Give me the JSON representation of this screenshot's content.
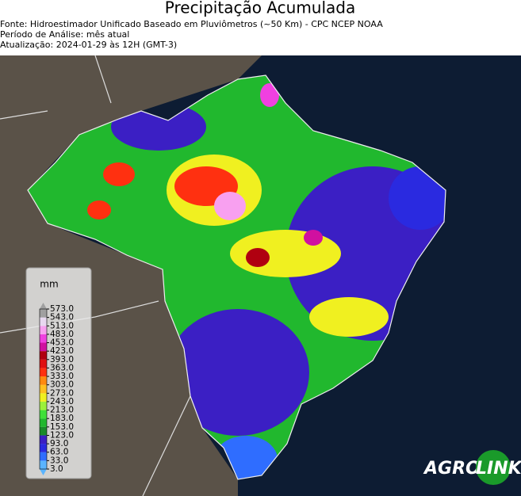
{
  "header": {
    "title": "Precipitação Acumulada",
    "lines": [
      "Fonte: Hidroestimador Unificado Baseado em Pluviômetros (~50 Km) - CPC NCEP NOAA",
      "Período de Análise: mês atual",
      "Atualização: 2024-01-29 às 12H (GMT-3)"
    ]
  },
  "legend": {
    "unit": "mm",
    "ticks": [
      {
        "value": 3,
        "label": "3.0"
      },
      {
        "value": 33,
        "label": "33.0"
      },
      {
        "value": 63,
        "label": "63.0"
      },
      {
        "value": 93,
        "label": "93.0"
      },
      {
        "value": 123,
        "label": "123.0"
      },
      {
        "value": 153,
        "label": "153.0"
      },
      {
        "value": 183,
        "label": "183.0"
      },
      {
        "value": 213,
        "label": "213.0"
      },
      {
        "value": 243,
        "label": "243.0"
      },
      {
        "value": 273,
        "label": "273.0"
      },
      {
        "value": 303,
        "label": "303.0"
      },
      {
        "value": 333,
        "label": "333.0"
      },
      {
        "value": 363,
        "label": "363.0"
      },
      {
        "value": 393,
        "label": "393.0"
      },
      {
        "value": 423,
        "label": "423.0"
      },
      {
        "value": 453,
        "label": "453.0"
      },
      {
        "value": 483,
        "label": "483.0"
      },
      {
        "value": 513,
        "label": "513.0"
      },
      {
        "value": 543,
        "label": "543.0"
      },
      {
        "value": 573,
        "label": "573.0"
      }
    ],
    "colors": [
      "#5ab4ff",
      "#2f6dff",
      "#2a2ae0",
      "#3b1fc4",
      "#1a8a2a",
      "#21b82e",
      "#3fe03a",
      "#9cf03a",
      "#f0f020",
      "#ffc020",
      "#ff8a10",
      "#ff3010",
      "#e01010",
      "#b00010",
      "#d010a0",
      "#f040e0",
      "#f8a0f0",
      "#e8d8f0",
      "#a0a0a0"
    ]
  },
  "logo": {
    "left": "AGRO",
    "right": "LINK"
  }
}
